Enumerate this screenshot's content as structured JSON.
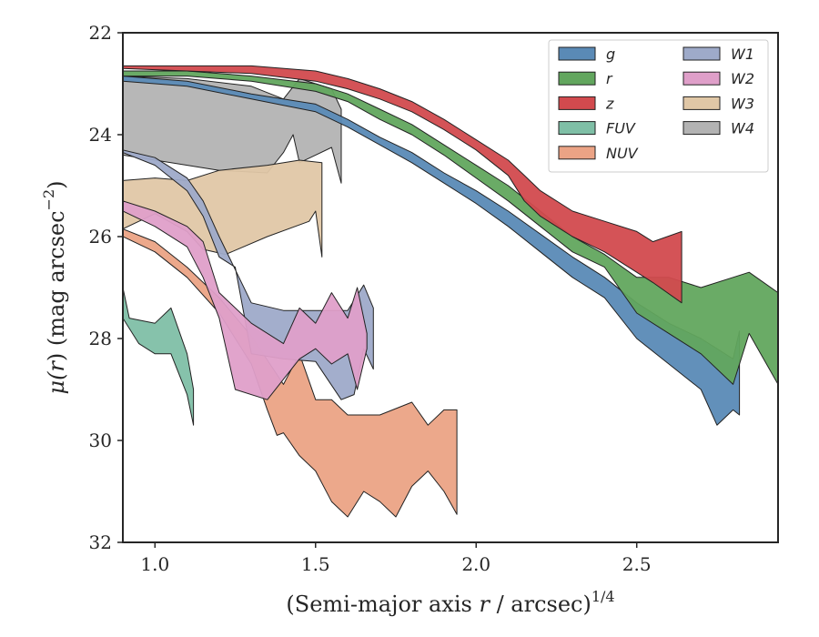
{
  "chart_data": {
    "type": "area",
    "title": "",
    "xlabel": "(Semi-major axis r / arcsec)",
    "xlabel_parts": {
      "prefix": "(Semi-major axis ",
      "var": "r",
      "middle": " / arcsec)",
      "sup": "1/4"
    },
    "ylabel": "μ(r) (mag arcsec⁻²)",
    "ylabel_parts": {
      "mu": "μ(",
      "var": "r",
      "after": ") (mag arcsec",
      "sup": "−2",
      "close": ")"
    },
    "xlim": [
      0.9,
      2.94
    ],
    "ylim": [
      22.0,
      32.0
    ],
    "y_inverted": true,
    "grid": false,
    "legend_placement": "top-right",
    "legend_columns": 2,
    "xticks": [
      {
        "value": 1.0,
        "label": "1.0"
      },
      {
        "value": 1.5,
        "label": "1.5"
      },
      {
        "value": 2.0,
        "label": "2.0"
      },
      {
        "value": 2.5,
        "label": "2.5"
      }
    ],
    "yticks": [
      {
        "value": 22,
        "label": "22"
      },
      {
        "value": 24,
        "label": "24"
      },
      {
        "value": 26,
        "label": "26"
      },
      {
        "value": 28,
        "label": "28"
      },
      {
        "value": 30,
        "label": "30"
      },
      {
        "value": 32,
        "label": "32"
      }
    ],
    "series": [
      {
        "name": "W4",
        "color": "#b3b3b3",
        "upper": [
          [
            0.9,
            22.85
          ],
          [
            1.1,
            22.9
          ],
          [
            1.3,
            23.05
          ],
          [
            1.4,
            23.3
          ],
          [
            1.45,
            22.9
          ],
          [
            1.55,
            23.1
          ],
          [
            1.58,
            23.5
          ]
        ],
        "lower": [
          [
            0.9,
            24.4
          ],
          [
            1.05,
            24.55
          ],
          [
            1.2,
            24.7
          ],
          [
            1.35,
            24.75
          ],
          [
            1.4,
            24.35
          ],
          [
            1.43,
            24.0
          ],
          [
            1.45,
            24.55
          ],
          [
            1.5,
            24.4
          ],
          [
            1.55,
            24.25
          ],
          [
            1.58,
            24.95
          ]
        ]
      },
      {
        "name": "W3",
        "color": "#e0c7a6",
        "upper": [
          [
            0.9,
            24.9
          ],
          [
            1.0,
            24.85
          ],
          [
            1.1,
            24.9
          ],
          [
            1.2,
            24.7
          ],
          [
            1.35,
            24.6
          ],
          [
            1.45,
            24.5
          ],
          [
            1.52,
            24.55
          ]
        ],
        "lower": [
          [
            0.9,
            25.85
          ],
          [
            1.0,
            25.55
          ],
          [
            1.1,
            25.9
          ],
          [
            1.15,
            26.25
          ],
          [
            1.22,
            26.35
          ],
          [
            1.35,
            26.0
          ],
          [
            1.48,
            25.7
          ],
          [
            1.5,
            25.5
          ],
          [
            1.52,
            26.4
          ]
        ]
      },
      {
        "name": "FUV",
        "color": "#7fbfa6",
        "upper": [
          [
            0.9,
            27.0
          ],
          [
            0.92,
            27.6
          ],
          [
            1.0,
            27.7
          ],
          [
            1.05,
            27.4
          ],
          [
            1.1,
            28.3
          ],
          [
            1.12,
            29.0
          ]
        ],
        "lower": [
          [
            0.9,
            27.6
          ],
          [
            0.95,
            28.1
          ],
          [
            1.0,
            28.3
          ],
          [
            1.05,
            28.3
          ],
          [
            1.1,
            29.1
          ],
          [
            1.12,
            29.7
          ]
        ]
      },
      {
        "name": "NUV",
        "color": "#eba385",
        "upper": [
          [
            0.9,
            25.85
          ],
          [
            1.0,
            26.1
          ],
          [
            1.1,
            26.6
          ],
          [
            1.2,
            27.2
          ],
          [
            1.3,
            27.95
          ],
          [
            1.4,
            28.9
          ],
          [
            1.45,
            28.3
          ],
          [
            1.5,
            29.2
          ],
          [
            1.55,
            29.2
          ],
          [
            1.6,
            29.5
          ],
          [
            1.7,
            29.5
          ],
          [
            1.8,
            29.25
          ],
          [
            1.85,
            29.7
          ],
          [
            1.9,
            29.4
          ],
          [
            1.94,
            29.4
          ]
        ],
        "lower": [
          [
            0.9,
            26.0
          ],
          [
            1.0,
            26.3
          ],
          [
            1.1,
            26.8
          ],
          [
            1.2,
            27.5
          ],
          [
            1.3,
            28.5
          ],
          [
            1.35,
            29.4
          ],
          [
            1.38,
            29.9
          ],
          [
            1.4,
            29.85
          ],
          [
            1.45,
            30.3
          ],
          [
            1.5,
            30.6
          ],
          [
            1.55,
            31.2
          ],
          [
            1.6,
            31.5
          ],
          [
            1.65,
            31.0
          ],
          [
            1.7,
            31.2
          ],
          [
            1.75,
            31.5
          ],
          [
            1.8,
            30.9
          ],
          [
            1.85,
            30.6
          ],
          [
            1.9,
            31.0
          ],
          [
            1.94,
            31.45
          ]
        ]
      },
      {
        "name": "W1",
        "color": "#9eaac9",
        "upper": [
          [
            0.9,
            24.3
          ],
          [
            1.0,
            24.45
          ],
          [
            1.1,
            24.85
          ],
          [
            1.15,
            25.3
          ],
          [
            1.2,
            26.0
          ],
          [
            1.3,
            27.3
          ],
          [
            1.4,
            27.45
          ],
          [
            1.5,
            27.45
          ],
          [
            1.6,
            27.45
          ],
          [
            1.65,
            26.95
          ],
          [
            1.68,
            27.4
          ]
        ],
        "lower": [
          [
            0.9,
            24.35
          ],
          [
            1.0,
            24.6
          ],
          [
            1.1,
            25.1
          ],
          [
            1.15,
            25.6
          ],
          [
            1.2,
            26.4
          ],
          [
            1.25,
            26.6
          ],
          [
            1.3,
            28.3
          ],
          [
            1.4,
            28.4
          ],
          [
            1.5,
            28.45
          ],
          [
            1.58,
            29.2
          ],
          [
            1.62,
            29.1
          ],
          [
            1.65,
            28.2
          ],
          [
            1.68,
            28.6
          ]
        ]
      },
      {
        "name": "W2",
        "color": "#df9fc9",
        "upper": [
          [
            0.9,
            25.3
          ],
          [
            1.0,
            25.5
          ],
          [
            1.1,
            25.8
          ],
          [
            1.15,
            26.1
          ],
          [
            1.2,
            27.1
          ],
          [
            1.3,
            27.7
          ],
          [
            1.4,
            28.1
          ],
          [
            1.45,
            27.4
          ],
          [
            1.5,
            27.7
          ],
          [
            1.55,
            27.1
          ],
          [
            1.6,
            27.6
          ],
          [
            1.63,
            27.0
          ],
          [
            1.66,
            27.9
          ]
        ],
        "lower": [
          [
            0.9,
            25.5
          ],
          [
            1.0,
            25.8
          ],
          [
            1.1,
            26.2
          ],
          [
            1.15,
            26.8
          ],
          [
            1.2,
            27.6
          ],
          [
            1.25,
            29.0
          ],
          [
            1.35,
            29.2
          ],
          [
            1.45,
            28.4
          ],
          [
            1.5,
            28.2
          ],
          [
            1.55,
            28.5
          ],
          [
            1.6,
            28.3
          ],
          [
            1.63,
            29.0
          ],
          [
            1.66,
            28.2
          ]
        ]
      },
      {
        "name": "g",
        "color": "#5a8ab6",
        "upper": [
          [
            0.9,
            22.85
          ],
          [
            1.1,
            22.95
          ],
          [
            1.3,
            23.2
          ],
          [
            1.5,
            23.4
          ],
          [
            1.6,
            23.7
          ],
          [
            1.7,
            24.05
          ],
          [
            1.8,
            24.35
          ],
          [
            1.9,
            24.75
          ],
          [
            2.0,
            25.1
          ],
          [
            2.1,
            25.5
          ],
          [
            2.2,
            25.95
          ],
          [
            2.3,
            26.4
          ],
          [
            2.4,
            26.8
          ],
          [
            2.5,
            27.3
          ],
          [
            2.6,
            27.7
          ],
          [
            2.7,
            28.0
          ],
          [
            2.8,
            28.4
          ],
          [
            2.82,
            27.85
          ]
        ],
        "lower": [
          [
            0.9,
            22.95
          ],
          [
            1.1,
            23.05
          ],
          [
            1.3,
            23.3
          ],
          [
            1.5,
            23.55
          ],
          [
            1.6,
            23.85
          ],
          [
            1.7,
            24.2
          ],
          [
            1.8,
            24.55
          ],
          [
            1.9,
            24.95
          ],
          [
            2.0,
            25.35
          ],
          [
            2.1,
            25.8
          ],
          [
            2.2,
            26.3
          ],
          [
            2.3,
            26.8
          ],
          [
            2.4,
            27.2
          ],
          [
            2.5,
            28.0
          ],
          [
            2.6,
            28.5
          ],
          [
            2.7,
            29.0
          ],
          [
            2.75,
            29.7
          ],
          [
            2.8,
            29.4
          ],
          [
            2.82,
            29.5
          ]
        ]
      },
      {
        "name": "r",
        "color": "#62a65e",
        "upper": [
          [
            0.9,
            22.75
          ],
          [
            1.1,
            22.75
          ],
          [
            1.3,
            22.85
          ],
          [
            1.5,
            23.0
          ],
          [
            1.6,
            23.2
          ],
          [
            1.7,
            23.5
          ],
          [
            1.8,
            23.8
          ],
          [
            1.9,
            24.2
          ],
          [
            2.0,
            24.6
          ],
          [
            2.1,
            25.0
          ],
          [
            2.2,
            25.5
          ],
          [
            2.3,
            26.0
          ],
          [
            2.4,
            26.35
          ],
          [
            2.5,
            26.8
          ],
          [
            2.6,
            26.8
          ],
          [
            2.7,
            27.0
          ],
          [
            2.8,
            26.8
          ],
          [
            2.85,
            26.7
          ],
          [
            2.94,
            27.1
          ]
        ],
        "lower": [
          [
            0.9,
            22.85
          ],
          [
            1.1,
            22.85
          ],
          [
            1.3,
            22.95
          ],
          [
            1.5,
            23.15
          ],
          [
            1.6,
            23.35
          ],
          [
            1.7,
            23.7
          ],
          [
            1.8,
            24.0
          ],
          [
            1.9,
            24.4
          ],
          [
            2.0,
            24.85
          ],
          [
            2.1,
            25.3
          ],
          [
            2.2,
            25.8
          ],
          [
            2.3,
            26.3
          ],
          [
            2.4,
            26.6
          ],
          [
            2.5,
            27.5
          ],
          [
            2.6,
            27.9
          ],
          [
            2.7,
            28.3
          ],
          [
            2.8,
            28.9
          ],
          [
            2.85,
            27.9
          ],
          [
            2.94,
            28.9
          ]
        ]
      },
      {
        "name": "z",
        "color": "#d24a4e",
        "upper": [
          [
            0.9,
            22.65
          ],
          [
            1.1,
            22.65
          ],
          [
            1.3,
            22.65
          ],
          [
            1.5,
            22.75
          ],
          [
            1.6,
            22.9
          ],
          [
            1.7,
            23.1
          ],
          [
            1.8,
            23.35
          ],
          [
            1.9,
            23.7
          ],
          [
            2.0,
            24.1
          ],
          [
            2.1,
            24.5
          ],
          [
            2.15,
            24.8
          ],
          [
            2.2,
            25.1
          ],
          [
            2.3,
            25.5
          ],
          [
            2.4,
            25.7
          ],
          [
            2.5,
            25.9
          ],
          [
            2.55,
            26.1
          ],
          [
            2.64,
            25.9
          ]
        ],
        "lower": [
          [
            0.9,
            22.7
          ],
          [
            1.1,
            22.75
          ],
          [
            1.3,
            22.8
          ],
          [
            1.5,
            22.95
          ],
          [
            1.6,
            23.1
          ],
          [
            1.7,
            23.3
          ],
          [
            1.8,
            23.55
          ],
          [
            1.9,
            23.9
          ],
          [
            2.0,
            24.3
          ],
          [
            2.1,
            24.8
          ],
          [
            2.15,
            25.3
          ],
          [
            2.2,
            25.6
          ],
          [
            2.3,
            26.0
          ],
          [
            2.4,
            26.3
          ],
          [
            2.5,
            26.7
          ],
          [
            2.55,
            26.9
          ],
          [
            2.64,
            27.3
          ]
        ]
      }
    ],
    "legend": [
      "g",
      "r",
      "z",
      "FUV",
      "NUV",
      "W1",
      "W2",
      "W3",
      "W4"
    ]
  }
}
